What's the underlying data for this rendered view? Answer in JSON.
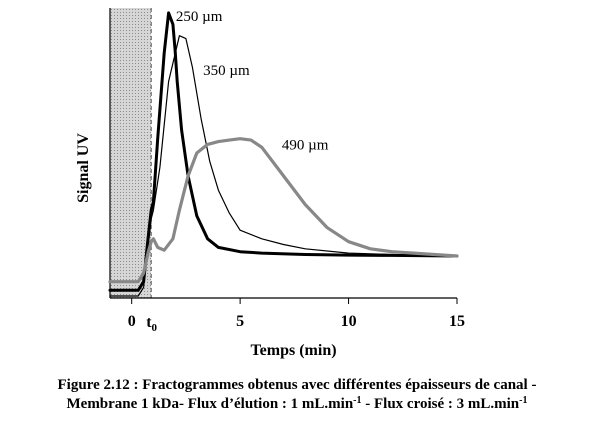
{
  "chart_data": {
    "type": "line",
    "title": "",
    "xlabel": "Temps (min)",
    "ylabel": "Signal UV",
    "xlim": [
      -1,
      15
    ],
    "x_ticks": [
      0,
      5,
      10,
      15
    ],
    "x_tick_labels": [
      "0",
      "5",
      "10",
      "15"
    ],
    "t0_label": "t",
    "t0_subscript": "0",
    "t0_value": 0.9,
    "y_axis_ticks": "none",
    "grid": false,
    "legend": "none",
    "shaded_region": [
      -1,
      0.9
    ],
    "shaded_color": "#c8c8c8",
    "series": [
      {
        "name": "250 µm",
        "color": "#000000",
        "style": "thick",
        "x": [
          -1,
          0.3,
          0.55,
          0.75,
          0.9,
          1.0,
          1.2,
          1.5,
          1.7,
          1.9,
          2.0,
          2.1,
          2.3,
          2.6,
          3.0,
          3.5,
          4.0,
          5.0,
          6.0,
          8.0,
          10.0,
          12.0,
          15.0
        ],
        "y": [
          0.02,
          0.02,
          0.05,
          0.2,
          0.3,
          0.33,
          0.55,
          0.85,
          0.99,
          0.95,
          0.86,
          0.75,
          0.58,
          0.42,
          0.28,
          0.2,
          0.17,
          0.155,
          0.15,
          0.145,
          0.143,
          0.142,
          0.14
        ]
      },
      {
        "name": "350 µm",
        "color": "#000000",
        "style": "thin",
        "x": [
          -1,
          0.3,
          0.55,
          0.75,
          0.9,
          1.0,
          1.3,
          1.7,
          2.2,
          2.5,
          2.8,
          3.2,
          3.6,
          4.0,
          4.5,
          5.0,
          6.0,
          7.0,
          8.0,
          10.0,
          12.0,
          15.0
        ],
        "y": [
          0.0,
          0.0,
          0.03,
          0.17,
          0.27,
          0.3,
          0.45,
          0.75,
          0.91,
          0.9,
          0.8,
          0.62,
          0.47,
          0.37,
          0.29,
          0.23,
          0.2,
          0.18,
          0.165,
          0.15,
          0.145,
          0.14
        ]
      },
      {
        "name": "490 µm",
        "color": "#888888",
        "style": "thick",
        "x": [
          -1,
          0.3,
          0.55,
          0.75,
          0.9,
          1.0,
          1.2,
          1.5,
          1.9,
          2.2,
          2.6,
          3.0,
          3.5,
          4.0,
          4.5,
          5.0,
          5.5,
          6.0,
          6.5,
          7.0,
          8.0,
          9.0,
          10.0,
          11.0,
          12.0,
          13.0,
          15.0
        ],
        "y": [
          0.05,
          0.05,
          0.08,
          0.15,
          0.19,
          0.2,
          0.17,
          0.16,
          0.2,
          0.3,
          0.42,
          0.5,
          0.53,
          0.54,
          0.545,
          0.55,
          0.545,
          0.52,
          0.47,
          0.42,
          0.32,
          0.24,
          0.19,
          0.165,
          0.155,
          0.15,
          0.14
        ]
      }
    ],
    "annotations": [
      "250 µm",
      "350 µm",
      "490 µm"
    ]
  },
  "caption": {
    "line1": "Figure 2.12 : Fractogrammes obtenus avec différentes épaisseurs de canal -",
    "line2_a": "Membrane 1 kDa- Flux d’élution : 1 mL.min",
    "line2_sup1": "-1",
    "line2_b": " - Flux croisé : 3 mL.min",
    "line2_sup2": "-1"
  }
}
